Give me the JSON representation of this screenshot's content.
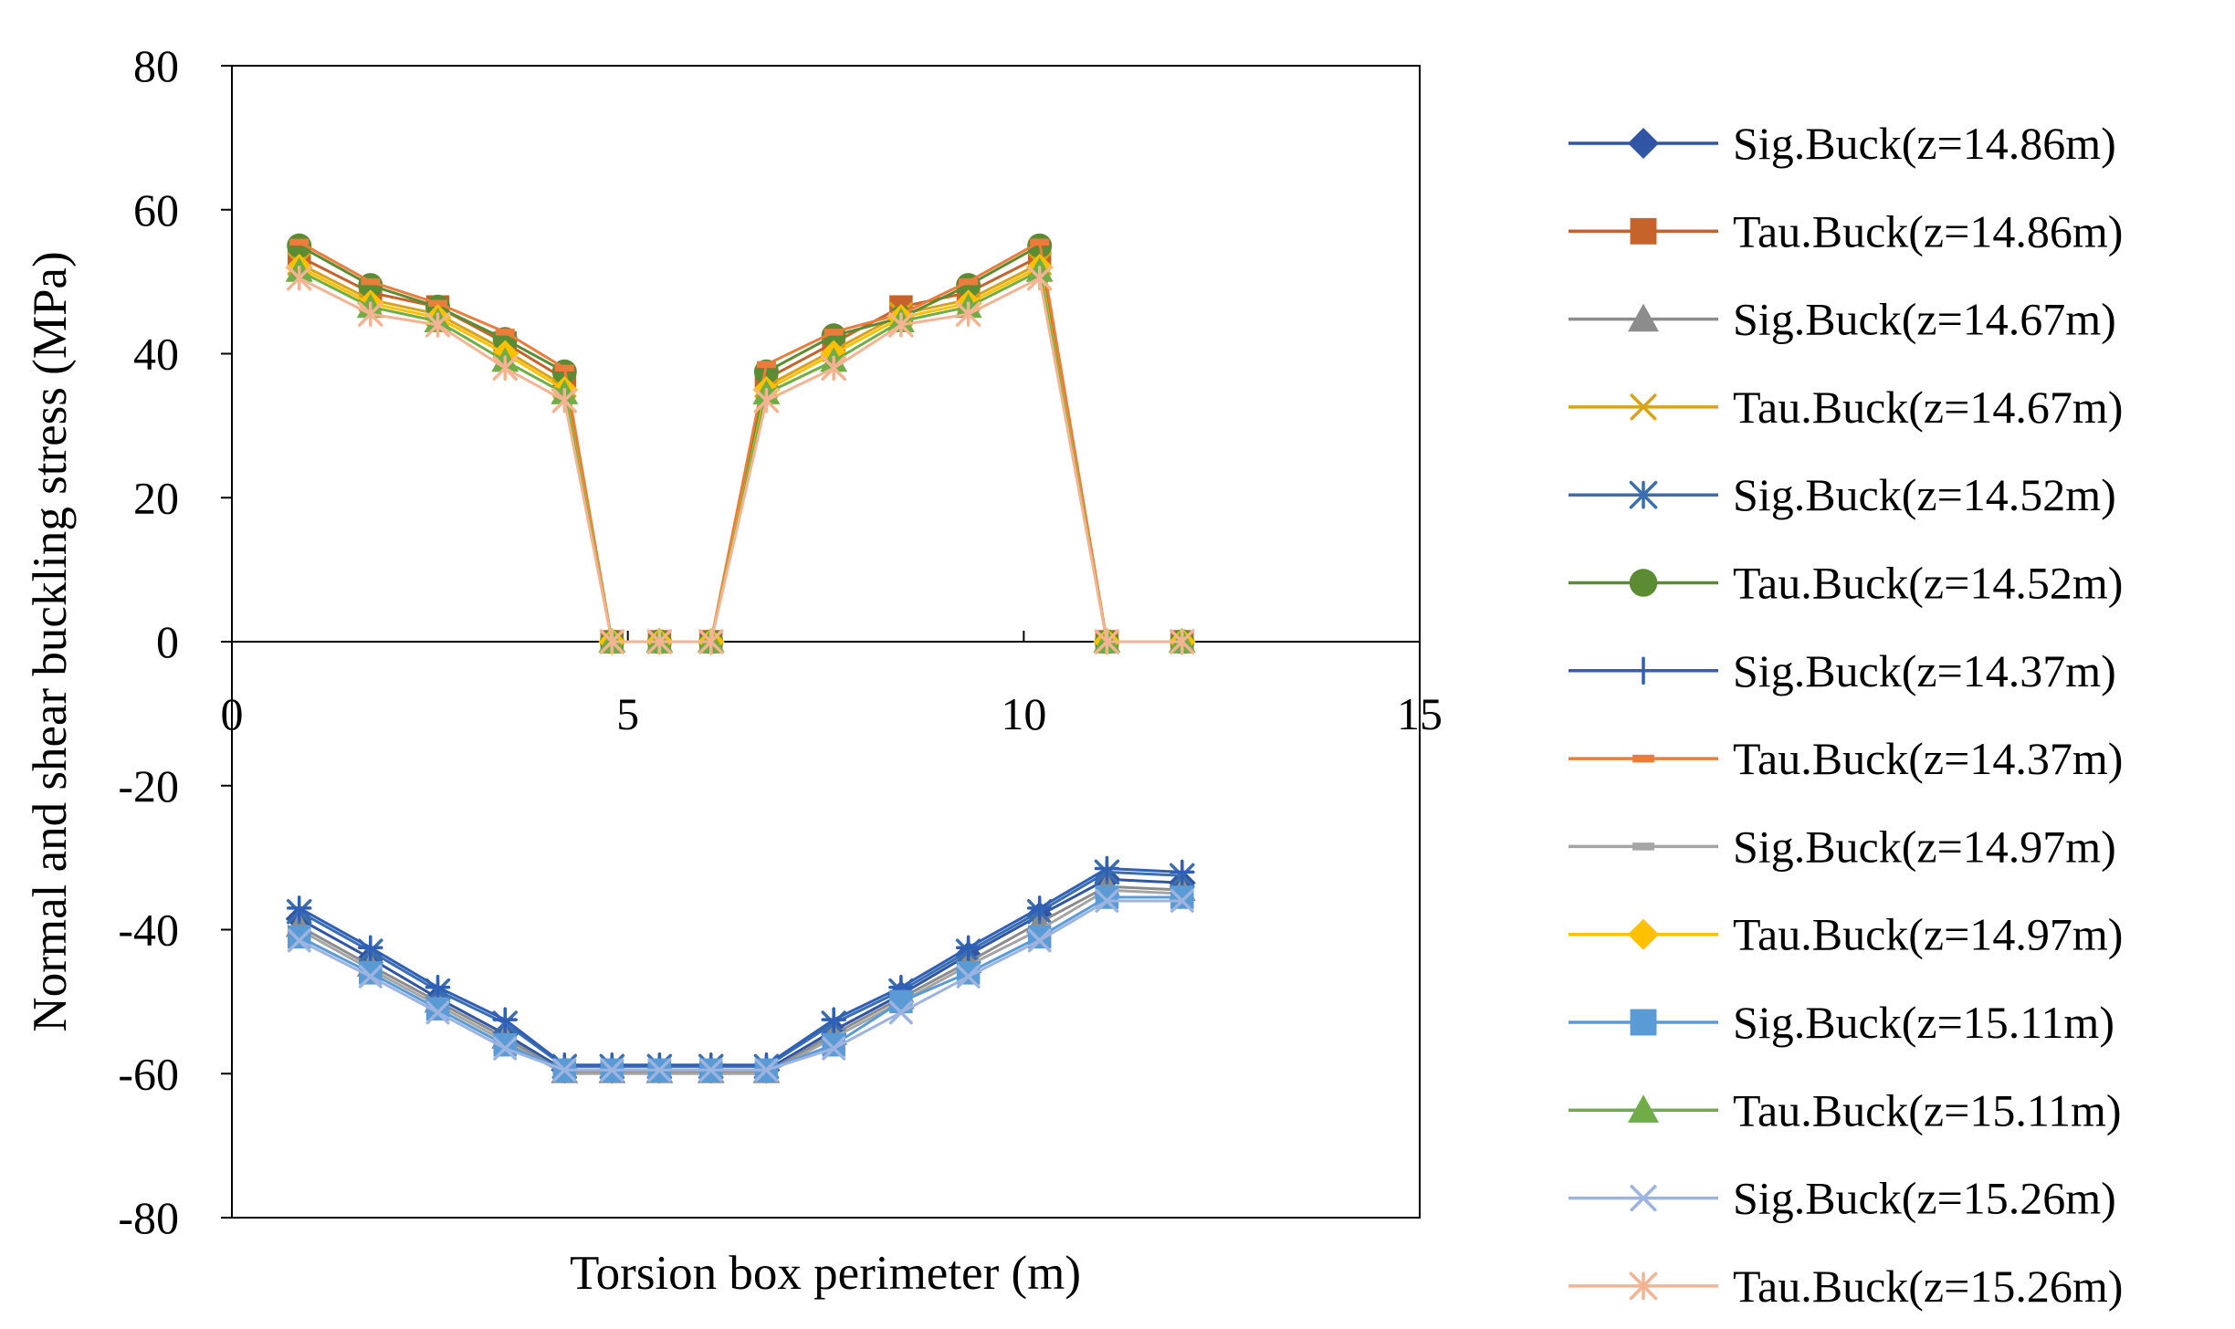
{
  "chart_data": {
    "type": "line",
    "title": "",
    "xlabel": "Torsion box perimeter (m)",
    "ylabel": "Normal and shear buckling stress (MPa)",
    "xlim": [
      0,
      15
    ],
    "ylim": [
      -80,
      80
    ],
    "xticks": [
      0,
      5,
      10,
      15
    ],
    "yticks": [
      -80,
      -60,
      -40,
      -20,
      0,
      20,
      40,
      60,
      80
    ],
    "grid": false,
    "legend_position": "right",
    "series": [
      {
        "name": "Sig.Buck(z=14.86m)",
        "color": "#2F55A4",
        "marker": "diamond",
        "x": [
          0.85,
          1.75,
          2.6,
          3.45,
          4.2,
          4.8,
          5.4,
          6.05,
          6.75,
          7.6,
          8.45,
          9.3,
          10.2,
          11.05,
          12.0
        ],
        "y": [
          -38.5,
          -44,
          -49.5,
          -54.5,
          -59.5,
          -59.5,
          -59.5,
          -59.5,
          -59.5,
          -54,
          -49,
          -43.5,
          -38,
          -33,
          -33.5
        ]
      },
      {
        "name": "Tau.Buck(z=14.86m)",
        "color": "#C5632B",
        "marker": "square",
        "x": [
          0.85,
          1.75,
          2.6,
          3.45,
          4.2,
          4.8,
          5.4,
          6.05,
          6.75,
          7.6,
          8.45,
          9.3,
          10.2,
          11.05,
          12.0
        ],
        "y": [
          53.5,
          48.5,
          46.5,
          41.5,
          36.5,
          0,
          0,
          0,
          36.5,
          41.5,
          46.5,
          48.5,
          53.5,
          0,
          0
        ]
      },
      {
        "name": "Sig.Buck(z=14.67m)",
        "color": "#8C8C8C",
        "marker": "triangle",
        "x": [
          0.85,
          1.75,
          2.6,
          3.45,
          4.2,
          4.8,
          5.4,
          6.05,
          6.75,
          7.6,
          8.45,
          9.3,
          10.2,
          11.05,
          12.0
        ],
        "y": [
          -39.5,
          -45,
          -50,
          -55,
          -59.8,
          -59.8,
          -59.8,
          -59.8,
          -59.8,
          -54.5,
          -49.5,
          -44.5,
          -39,
          -34,
          -34.5
        ]
      },
      {
        "name": "Tau.Buck(z=14.67m)",
        "color": "#D9A21B",
        "marker": "x",
        "x": [
          0.85,
          1.75,
          2.6,
          3.45,
          4.2,
          4.8,
          5.4,
          6.05,
          6.75,
          7.6,
          8.45,
          9.3,
          10.2,
          11.05,
          12.0
        ],
        "y": [
          52.5,
          47.5,
          45.5,
          40.5,
          35.5,
          0,
          0,
          0,
          35.5,
          40.5,
          45.5,
          47.5,
          52.5,
          0,
          0
        ]
      },
      {
        "name": "Sig.Buck(z=14.52m)",
        "color": "#3A6EAF",
        "marker": "asterisk",
        "x": [
          0.85,
          1.75,
          2.6,
          3.45,
          4.2,
          4.8,
          5.4,
          6.05,
          6.75,
          7.6,
          8.45,
          9.3,
          10.2,
          11.05,
          12.0
        ],
        "y": [
          -37.5,
          -43,
          -48.5,
          -53,
          -59,
          -59,
          -59,
          -59,
          -59,
          -53,
          -48.5,
          -43,
          -37.5,
          -32,
          -32.5
        ]
      },
      {
        "name": "Tau.Buck(z=14.52m)",
        "color": "#5B8B32",
        "marker": "circle",
        "x": [
          0.85,
          1.75,
          2.6,
          3.45,
          4.2,
          4.8,
          5.4,
          6.05,
          6.75,
          7.6,
          8.45,
          9.3,
          10.2,
          11.05,
          12.0
        ],
        "y": [
          55,
          49.5,
          46.5,
          42,
          37.5,
          0,
          0,
          0,
          37.5,
          42.5,
          45,
          49.5,
          55,
          0,
          0
        ]
      },
      {
        "name": "Sig.Buck(z=14.37m)",
        "color": "#2F5FB6",
        "marker": "plus",
        "x": [
          0.85,
          1.75,
          2.6,
          3.45,
          4.2,
          4.8,
          5.4,
          6.05,
          6.75,
          7.6,
          8.45,
          9.3,
          10.2,
          11.05,
          12.0
        ],
        "y": [
          -37,
          -42.5,
          -48,
          -52.5,
          -58.8,
          -58.8,
          -58.8,
          -58.8,
          -58.8,
          -52.5,
          -48,
          -42.5,
          -37,
          -31.5,
          -32
        ]
      },
      {
        "name": "Tau.Buck(z=14.37m)",
        "color": "#EB7D3C",
        "marker": "dash",
        "x": [
          0.85,
          1.75,
          2.6,
          3.45,
          4.2,
          4.8,
          5.4,
          6.05,
          6.75,
          7.6,
          8.45,
          9.3,
          10.2,
          11.05,
          12.0
        ],
        "y": [
          55.5,
          50,
          47,
          43,
          38,
          0,
          0,
          0,
          38.5,
          43,
          45.5,
          50,
          55.5,
          0,
          0
        ]
      },
      {
        "name": "Sig.Buck(z=14.97m)",
        "color": "#A5A5A5",
        "marker": "dash",
        "x": [
          0.85,
          1.75,
          2.6,
          3.45,
          4.2,
          4.8,
          5.4,
          6.05,
          6.75,
          7.6,
          8.45,
          9.3,
          10.2,
          11.05,
          12.0
        ],
        "y": [
          -40,
          -45.5,
          -50.5,
          -55.5,
          -60,
          -60,
          -60,
          -60,
          -60,
          -55,
          -50,
          -45,
          -40,
          -34.5,
          -35
        ]
      },
      {
        "name": "Tau.Buck(z=14.97m)",
        "color": "#FFC000",
        "marker": "diamond",
        "x": [
          0.85,
          1.75,
          2.6,
          3.45,
          4.2,
          4.8,
          5.4,
          6.05,
          6.75,
          7.6,
          8.45,
          9.3,
          10.2,
          11.05,
          12.0
        ],
        "y": [
          52,
          47,
          45,
          40,
          35,
          0,
          0,
          0,
          35,
          40,
          45,
          47,
          52,
          0,
          0
        ]
      },
      {
        "name": "Sig.Buck(z=15.11m)",
        "color": "#5B9BD5",
        "marker": "square",
        "x": [
          0.85,
          1.75,
          2.6,
          3.45,
          4.2,
          4.8,
          5.4,
          6.05,
          6.75,
          7.6,
          8.45,
          9.3,
          10.2,
          11.05,
          12.0
        ],
        "y": [
          -41,
          -46,
          -51,
          -56,
          -59.5,
          -59.5,
          -59.5,
          -59.5,
          -59.5,
          -56,
          -50,
          -46,
          -41,
          -35.5,
          -35.5
        ]
      },
      {
        "name": "Tau.Buck(z=15.11m)",
        "color": "#70AD47",
        "marker": "triangle",
        "x": [
          0.85,
          1.75,
          2.6,
          3.45,
          4.2,
          4.8,
          5.4,
          6.05,
          6.75,
          7.6,
          8.45,
          9.3,
          10.2,
          11.05,
          12.0
        ],
        "y": [
          51.5,
          46.5,
          44.5,
          39,
          34.5,
          0,
          0,
          0,
          34.5,
          39,
          44.5,
          46.5,
          51.5,
          0,
          0
        ]
      },
      {
        "name": "Sig.Buck(z=15.26m)",
        "color": "#9DB3E0",
        "marker": "x",
        "x": [
          0.85,
          1.75,
          2.6,
          3.45,
          4.2,
          4.8,
          5.4,
          6.05,
          6.75,
          7.6,
          8.45,
          9.3,
          10.2,
          11.05,
          12.0
        ],
        "y": [
          -41.5,
          -46.5,
          -51.5,
          -56.5,
          -59.5,
          -59.5,
          -59.5,
          -59.5,
          -59.5,
          -56.5,
          -51.5,
          -46.5,
          -41.5,
          -36,
          -36
        ]
      },
      {
        "name": "Tau.Buck(z=15.26m)",
        "color": "#F4B493",
        "marker": "asterisk",
        "x": [
          0.85,
          1.75,
          2.6,
          3.45,
          4.2,
          4.8,
          5.4,
          6.05,
          6.75,
          7.6,
          8.45,
          9.3,
          10.2,
          11.05,
          12.0
        ],
        "y": [
          50.5,
          45.5,
          44,
          38,
          33.5,
          0,
          0,
          0,
          33.5,
          38,
          44,
          45.5,
          50.5,
          0,
          0
        ]
      }
    ]
  }
}
